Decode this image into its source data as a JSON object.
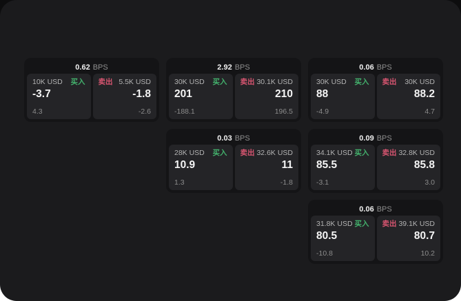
{
  "labels": {
    "buy": "买入",
    "sell": "卖出",
    "bps": "BPS"
  },
  "colors": {
    "buy_green": "#43b06c",
    "sell_red": "#d75570",
    "panel_bg": "#1b1b1d",
    "card_bg": "#141416",
    "tile_bg": "#242427"
  },
  "cards": [
    {
      "bps": "0.62",
      "buy": {
        "amount": "10K USD",
        "value": "-3.7",
        "delta": "4.3"
      },
      "sell": {
        "amount": "5.5K USD",
        "value": "-1.8",
        "delta": "-2.6"
      }
    },
    {
      "bps": "2.92",
      "buy": {
        "amount": "30K USD",
        "value": "201",
        "delta": "-188.1"
      },
      "sell": {
        "amount": "30.1K USD",
        "value": "210",
        "delta": "196.5"
      }
    },
    {
      "bps": "0.06",
      "buy": {
        "amount": "30K USD",
        "value": "88",
        "delta": "-4.9"
      },
      "sell": {
        "amount": "30K USD",
        "value": "88.2",
        "delta": "4.7"
      }
    },
    {
      "bps": "0.03",
      "buy": {
        "amount": "28K USD",
        "value": "10.9",
        "delta": "1.3"
      },
      "sell": {
        "amount": "32.6K USD",
        "value": "11",
        "delta": "-1.8"
      }
    },
    {
      "bps": "0.09",
      "buy": {
        "amount": "34.1K USD",
        "value": "85.5",
        "delta": "-3.1"
      },
      "sell": {
        "amount": "32.8K USD",
        "value": "85.8",
        "delta": "3.0"
      }
    },
    {
      "bps": "0.06",
      "buy": {
        "amount": "31.8K USD",
        "value": "80.5",
        "delta": "-10.8"
      },
      "sell": {
        "amount": "39.1K USD",
        "value": "80.7",
        "delta": "10.2"
      }
    }
  ]
}
